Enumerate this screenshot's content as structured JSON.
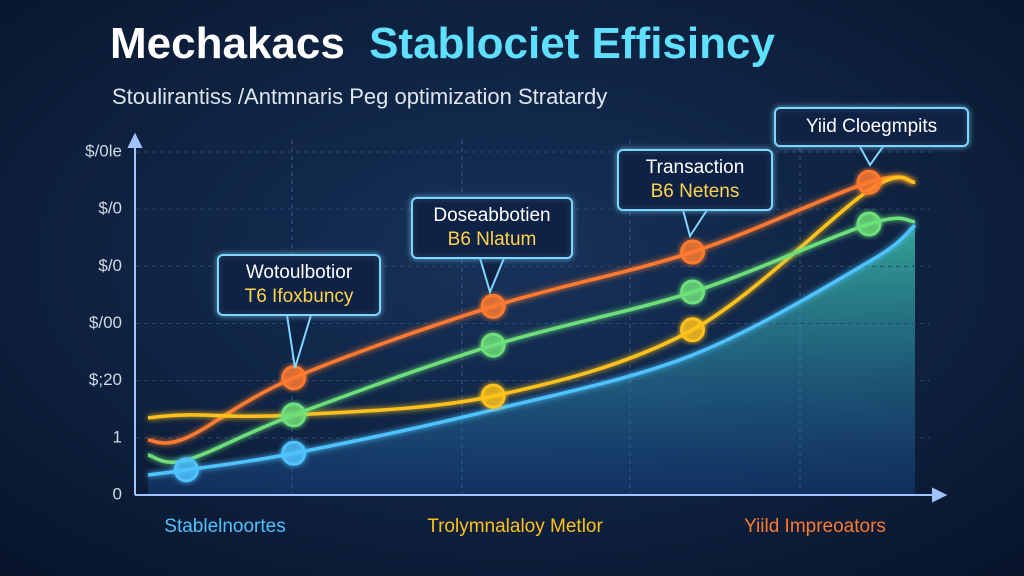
{
  "chart_data": {
    "type": "line",
    "title": {
      "lead": "Mechakacs",
      "accent": "Stablociet Effisincy"
    },
    "subtitle": "Stoulirantiss /Antmnaris Peg optimization Stratardy",
    "x": [
      0,
      5,
      19,
      45,
      71,
      94,
      100
    ],
    "xlim": [
      0,
      100
    ],
    "ylim": [
      0,
      6
    ],
    "yticks": [
      {
        "value": 0,
        "label": "0"
      },
      {
        "value": 1,
        "label": "1"
      },
      {
        "value": 2,
        "label": "$;20"
      },
      {
        "value": 3,
        "label": "$/00"
      },
      {
        "value": 4,
        "label": "$/0"
      },
      {
        "value": 5,
        "label": "$/0"
      },
      {
        "value": 6,
        "label": "$/0le"
      }
    ],
    "grid": true,
    "series": [
      {
        "name": "Yiild Impreoators",
        "color": "#ff7a2e",
        "values": [
          0.96,
          1.0,
          2.05,
          3.3,
          4.25,
          5.47,
          5.47
        ],
        "markers": [
          2,
          3,
          4,
          5
        ]
      },
      {
        "name": "Trolymnalaloy Metlor",
        "color": "#ffc21a",
        "values": [
          1.35,
          1.4,
          1.4,
          1.73,
          2.89,
          5.33,
          5.47
        ],
        "markers": [
          3,
          4
        ]
      },
      {
        "color": "#6ee07a",
        "values": [
          0.7,
          0.61,
          1.4,
          2.62,
          3.55,
          4.74,
          4.78
        ],
        "markers": [
          2,
          3,
          4,
          5
        ]
      },
      {
        "name": "Stablelnoortes",
        "color": "#4fc3ff",
        "values": [
          0.35,
          0.44,
          0.73,
          1.49,
          2.45,
          4.08,
          4.72
        ],
        "markers": [
          1,
          2
        ],
        "area": true
      }
    ],
    "annotations": [
      {
        "lines": [
          "Wotoulbotior",
          "T6 Ifoxbuncy"
        ]
      },
      {
        "lines": [
          "Doseabbotien",
          "B6 Nlatum"
        ]
      },
      {
        "lines": [
          "Transaction",
          "B6 Netens"
        ]
      },
      {
        "lines": [
          "Yiid Cloegmpits"
        ]
      }
    ]
  }
}
